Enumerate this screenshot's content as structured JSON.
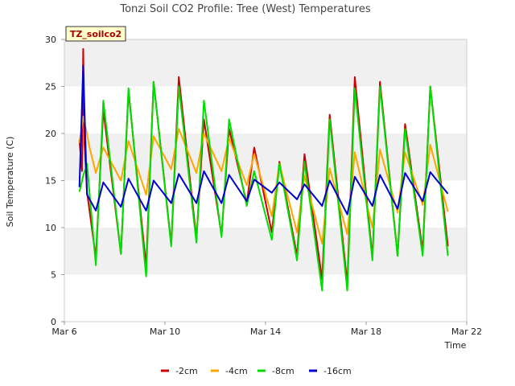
{
  "chart_data": {
    "type": "line",
    "title": "Tonzi Soil CO2 Profile: Tree (West) Temperatures",
    "xlabel": "Time",
    "ylabel": "Soil Temperature (C)",
    "station_tag": "TZ_soilco2",
    "x_unit": "day of March",
    "xlim": [
      6,
      22
    ],
    "ylim": [
      0,
      30
    ],
    "x_ticks": [
      {
        "value": 6,
        "label": "Mar 6"
      },
      {
        "value": 10,
        "label": "Mar 10"
      },
      {
        "value": 14,
        "label": "Mar 14"
      },
      {
        "value": 18,
        "label": "Mar 18"
      },
      {
        "value": 22,
        "label": "Mar 22"
      }
    ],
    "y_ticks": [
      0,
      5,
      10,
      15,
      20,
      25,
      30
    ],
    "grid": "alternating horizontal bands",
    "legend": "bottom",
    "days": [
      6.95,
      7.95,
      8.95,
      9.95,
      10.95,
      11.95,
      12.95,
      13.95,
      14.95,
      15.95,
      16.95,
      17.95,
      18.95,
      19.95,
      20.95
    ],
    "series": [
      {
        "name": "-2cm",
        "color": "#cc0000",
        "x": [
          6.6,
          6.7,
          6.75,
          6.8,
          6.9
        ],
        "y": [
          19.3,
          16.0,
          29.0,
          19.0,
          13.8
        ],
        "daily_min": [
          6.8,
          7.2,
          5.8,
          8.2,
          8.8,
          9.2,
          12.6,
          9.5,
          7.0,
          4.5,
          4.0,
          6.8,
          7.0,
          7.5,
          8.0
        ],
        "daily_max": [
          22.5,
          24.5,
          25.5,
          26.0,
          21.5,
          20.5,
          18.5,
          17.0,
          17.8,
          22.0,
          26.0,
          25.5,
          21.0,
          25.0,
          8.0
        ],
        "end": 21.2
      },
      {
        "name": "-4cm",
        "color": "#ffa500",
        "x": [
          6.6,
          6.75,
          6.9,
          7.0
        ],
        "y": [
          19.0,
          21.8,
          20.0,
          18.5
        ],
        "daily_min": [
          15.8,
          15.0,
          13.5,
          16.2,
          15.8,
          16.0,
          14.5,
          11.2,
          9.5,
          8.3,
          9.3,
          10.0,
          11.6,
          12.4,
          11.7
        ],
        "daily_max": [
          18.5,
          19.2,
          19.7,
          20.5,
          20.0,
          19.5,
          17.8,
          16.8,
          15.5,
          16.3,
          18.0,
          18.3,
          18.0,
          18.8,
          11.7
        ],
        "end": 21.2
      },
      {
        "name": "-8cm",
        "color": "#00dd00",
        "x": [
          6.6,
          6.75,
          6.9
        ],
        "y": [
          13.8,
          15.5,
          16.8
        ],
        "daily_min": [
          6.0,
          7.2,
          4.8,
          8.0,
          8.4,
          9.0,
          12.3,
          8.7,
          6.5,
          3.3,
          3.3,
          6.5,
          7.0,
          7.0,
          7.0
        ],
        "daily_max": [
          23.5,
          24.8,
          25.5,
          25.0,
          23.5,
          21.5,
          16.0,
          16.8,
          17.0,
          21.5,
          24.8,
          25.0,
          20.5,
          25.0,
          7.0
        ],
        "end": 21.2
      },
      {
        "name": "-16cm",
        "color": "#0000cc",
        "x": [
          6.6,
          6.75,
          6.9
        ],
        "y": [
          14.3,
          27.2,
          13.5
        ],
        "daily_min": [
          11.8,
          12.2,
          11.8,
          12.6,
          12.6,
          12.6,
          12.8,
          13.7,
          13.0,
          12.3,
          11.4,
          12.3,
          12.0,
          12.8,
          13.6
        ],
        "daily_max": [
          14.8,
          15.2,
          15.0,
          15.7,
          16.0,
          15.6,
          15.1,
          14.8,
          14.6,
          15.0,
          15.4,
          15.6,
          15.8,
          15.9,
          13.6
        ],
        "end": 21.2
      }
    ]
  }
}
